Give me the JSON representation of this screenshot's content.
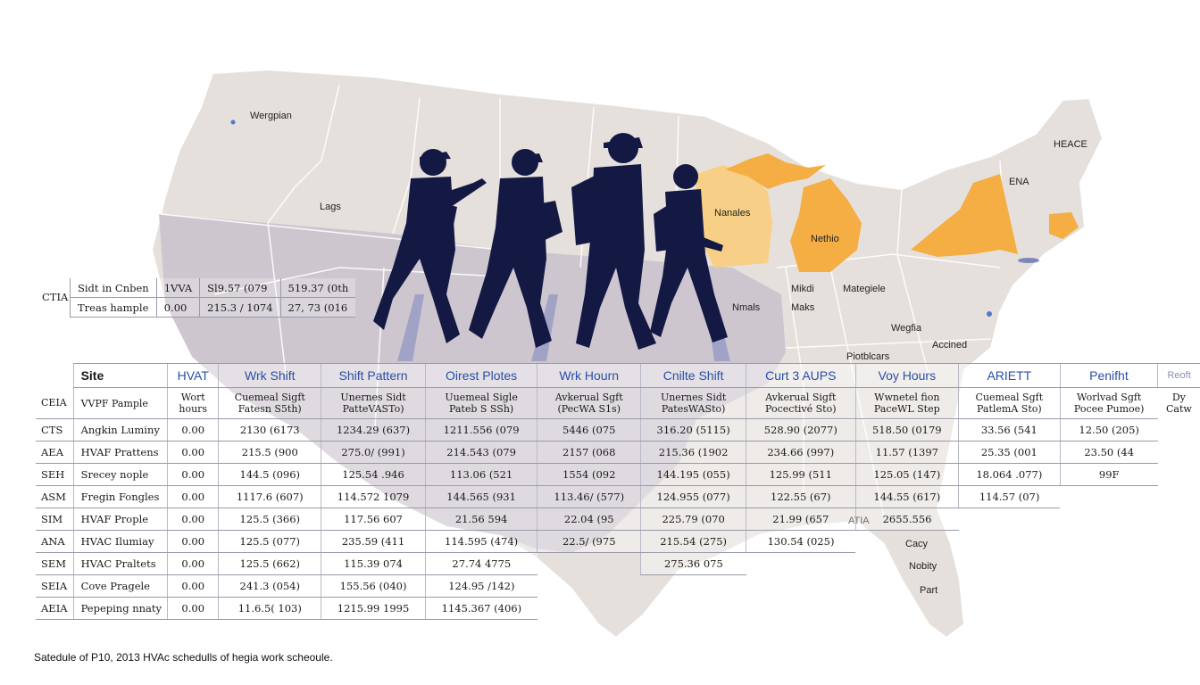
{
  "colors": {
    "map_base": "#e6e0dc",
    "map_overlay": "#c9c1cc",
    "highlight_orange": "#f4ae43",
    "highlight_light_orange": "#f8cf86",
    "silhouette": "#141944",
    "header_text": "#2a4fa6"
  },
  "map_labels": [
    "Wergpian",
    "Lags",
    "Nanales",
    "Nethio",
    "HEACE",
    "ENA",
    "Mikdi",
    "Maks",
    "Nmals",
    "Mategiele",
    "Wegfia",
    "Accined",
    "Piotblcars",
    "Cacy",
    "Nobity",
    "Part",
    "ATIA"
  ],
  "silhouettes": [
    "worker-with-tool-icon",
    "worker-with-clipboard-icon",
    "worker-with-backpack-icon",
    "worker-with-drill-icon"
  ],
  "top_table": {
    "code": "CTIA",
    "rows": [
      [
        "Sidt in Cnben",
        "1VVA",
        "Sl9.57 (079",
        "519.37 (0th"
      ],
      [
        "Treas hample",
        "0.00",
        "215.3 / 1074",
        "27, 73 (016"
      ]
    ]
  },
  "main_table": {
    "headers": [
      "Site",
      "HVAT",
      "Wrk Shift",
      "Shift Pattern",
      "Oirest Plotes",
      "Wrk Hourn",
      "Cnilte Shift",
      "Curt 3 AUPS",
      "Voy Hours",
      "ARIETT",
      "Penifht",
      "Reoft"
    ],
    "subheader": {
      "code": "CEIA",
      "cells": [
        "VVPF Pample",
        "Wort hours",
        "Cuemeal Sigft Fatesn S5th)",
        "Unernes Sidt PatteVASTo)",
        "Uuemeal Sigle Pateb S SSh)",
        "Avkerual Sgft (PecWA S1s)",
        "Unernes Sidt PatesWASto)",
        "Avkerual Sigft Pocectivé Sto)",
        "Wwnetel fion PaceWL Step",
        "Cuemeal Sgft PatlemA Sto)",
        "Worlvad Sgft Pocee Pumoe)",
        "Dy Catw"
      ]
    },
    "rows": [
      {
        "code": "CTS",
        "cells": [
          "Angkin Luminy",
          "0.00",
          "2130 (6173",
          "1234.29 (637)",
          "1211.556 (079",
          "5446 (075",
          "316.20 (5115)",
          "528.90 (2077)",
          "518.50 (0179",
          "33.56 (541",
          "12.50 (205)"
        ]
      },
      {
        "code": "AEA",
        "cells": [
          "HVAF Prattens",
          "0.00",
          "215.5 (900",
          "275.0/ (991)",
          "214.543 (079",
          "2157 (068",
          "215.36 (1902",
          "234.66 (997)",
          "11.57 (1397",
          "25.35 (001",
          "23.50 (44"
        ]
      },
      {
        "code": "SEH",
        "cells": [
          "Srecey nople",
          "0.00",
          "144.5 (096)",
          "125.54 .946",
          "113.06 (521",
          "1554 (092",
          "144.195 (055)",
          "125.99 (511",
          "125.05 (147)",
          "18.064 .077)",
          "99F"
        ]
      },
      {
        "code": "ASM",
        "cells": [
          "Fregin Fongles",
          "0.00",
          "1117.6 (607)",
          "114.572 1079",
          "144.565 (931",
          "113.46/ (577)",
          "124.955 (077)",
          "122.55 (67)",
          "144.55 (617)",
          "114.57 (07)",
          ""
        ]
      },
      {
        "code": "SIM",
        "cells": [
          "HVAF Prople",
          "0.00",
          "125.5 (366)",
          "117.56 607",
          "21.56 594",
          "22.04 (95",
          "225.79 (070",
          "21.99 (657",
          "2655.556",
          "",
          ""
        ]
      },
      {
        "code": "ANA",
        "cells": [
          "HVAC Ilumiay",
          "0.00",
          "125.5 (077)",
          "235.59 (411",
          "114.595 (474)",
          "22.5/ (975",
          "215.54 (275)",
          "130.54 (025)",
          "",
          "",
          ""
        ]
      },
      {
        "code": "SEM",
        "cells": [
          "HVAC Praltets",
          "0.00",
          "125.5 (662)",
          "115.39 074",
          "27.74 4775",
          "",
          "275.36 075",
          "",
          "",
          "",
          ""
        ]
      },
      {
        "code": "SEIA",
        "cells": [
          "Cove Pragele",
          "0.00",
          "241.3 (054)",
          "155.56 (040)",
          "124.95 /142)",
          "",
          "",
          "",
          "",
          "",
          ""
        ]
      },
      {
        "code": "AEIA",
        "cells": [
          "Pepeping nnaty",
          "0.00",
          "11.6.5( 103)",
          "1215.99 1995",
          "1145.367 (406)",
          "",
          "",
          "",
          "",
          "",
          ""
        ]
      }
    ]
  },
  "caption": "Satedule of P10, 2013 HVAc schedulls of hegia work scheoule."
}
